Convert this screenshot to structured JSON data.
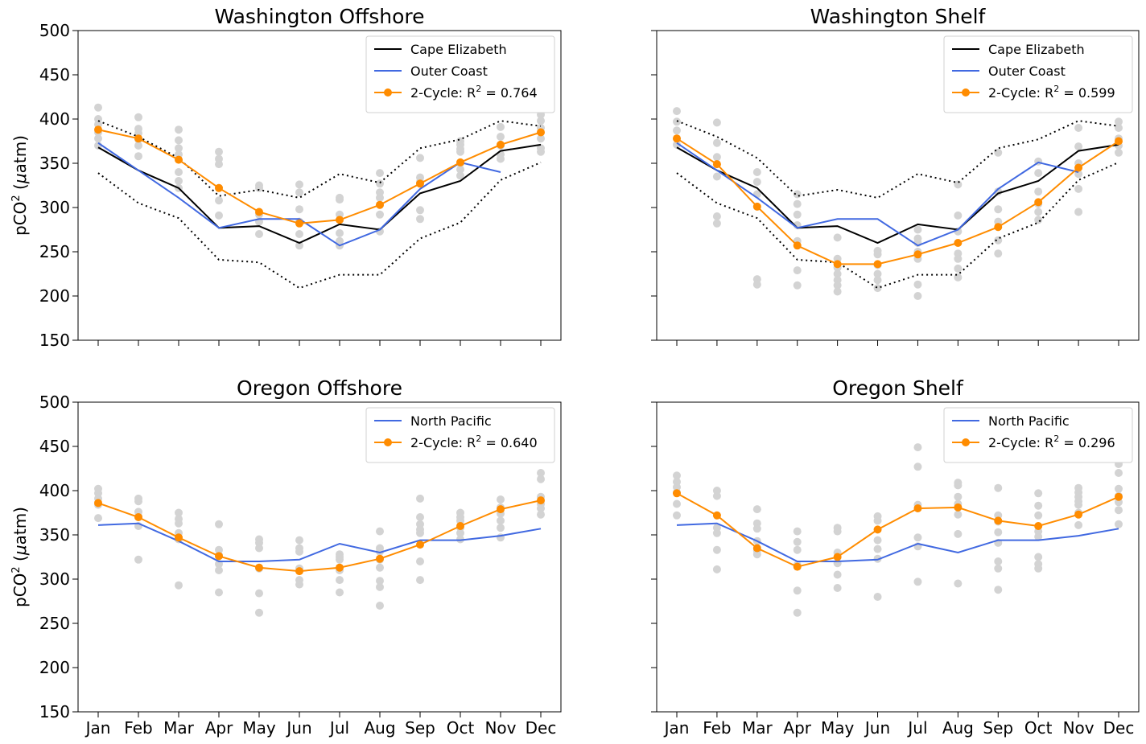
{
  "months": [
    "Jan",
    "Feb",
    "Mar",
    "Apr",
    "May",
    "Jun",
    "Jul",
    "Aug",
    "Sep",
    "Oct",
    "Nov",
    "Dec"
  ],
  "colors": {
    "black": "#000000",
    "blue": "#4169e1",
    "orange": "#ff8c00",
    "scatter": "#d3d3d3"
  },
  "chart_data": [
    {
      "type": "line",
      "title": "Washington Offshore",
      "ylabel": "pCO² (μatm)",
      "ylim": [
        150,
        500
      ],
      "yticks": [
        150,
        200,
        250,
        300,
        350,
        400,
        450,
        500
      ],
      "legend_position": "upper right",
      "series": [
        {
          "name": "Cape Elizabeth",
          "color": "#000000",
          "style": "solid",
          "values": [
            368,
            342,
            322,
            277,
            279,
            260,
            281,
            275,
            316,
            330,
            364,
            371
          ]
        },
        {
          "name": "Outer Coast",
          "color": "#4169e1",
          "style": "solid",
          "values": [
            373,
            342,
            311,
            277,
            287,
            287,
            257,
            275,
            321,
            351,
            340,
            null
          ]
        },
        {
          "name": "2-Cycle: R",
          "r2": "0.764",
          "color": "#ff8c00",
          "style": "marker",
          "values": [
            388,
            378,
            354,
            322,
            295,
            282,
            286,
            303,
            327,
            351,
            371,
            385
          ]
        },
        {
          "color": "#000000",
          "style": "dotted",
          "values": [
            398,
            380,
            356,
            313,
            320,
            311,
            338,
            328,
            367,
            377,
            398,
            392
          ]
        },
        {
          "color": "#000000",
          "style": "dotted",
          "values": [
            339,
            305,
            288,
            241,
            238,
            209,
            224,
            224,
            265,
            283,
            331,
            351
          ]
        }
      ],
      "scatter": [
        [
          413,
          400,
          394,
          385,
          378,
          370
        ],
        [
          402,
          389,
          384,
          377,
          370,
          358
        ],
        [
          388,
          376,
          367,
          360,
          340,
          330,
          322
        ],
        [
          363,
          355,
          349,
          322,
          308,
          291
        ],
        [
          325,
          322,
          292,
          284,
          270
        ],
        [
          326,
          317,
          298,
          284,
          270,
          257
        ],
        [
          311,
          309,
          292,
          271,
          262,
          257
        ],
        [
          339,
          327,
          317,
          311,
          303,
          292,
          273
        ],
        [
          356,
          334,
          329,
          297,
          287
        ],
        [
          375,
          371,
          366,
          363,
          350,
          343,
          336
        ],
        [
          391,
          380,
          370,
          360,
          355
        ],
        [
          405,
          398,
          390,
          378,
          367,
          363
        ]
      ]
    },
    {
      "type": "line",
      "title": "Washington Shelf",
      "ylim": [
        150,
        500
      ],
      "legend_position": "upper right",
      "series": [
        {
          "name": "Cape Elizabeth",
          "color": "#000000",
          "style": "solid",
          "values": [
            368,
            342,
            322,
            277,
            279,
            260,
            281,
            275,
            316,
            330,
            364,
            371
          ]
        },
        {
          "name": "Outer Coast",
          "color": "#4169e1",
          "style": "solid",
          "values": [
            373,
            342,
            311,
            277,
            287,
            287,
            257,
            275,
            321,
            351,
            340,
            null
          ]
        },
        {
          "name": "2-Cycle: R",
          "r2": "0.599",
          "color": "#ff8c00",
          "style": "marker",
          "values": [
            378,
            349,
            301,
            257,
            236,
            236,
            247,
            260,
            278,
            306,
            345,
            375
          ]
        },
        {
          "color": "#000000",
          "style": "dotted",
          "values": [
            398,
            380,
            356,
            313,
            320,
            311,
            338,
            328,
            367,
            377,
            398,
            392
          ]
        },
        {
          "color": "#000000",
          "style": "dotted",
          "values": [
            339,
            305,
            288,
            241,
            238,
            209,
            224,
            224,
            265,
            283,
            331,
            351
          ]
        }
      ],
      "scatter": [
        [
          409,
          397,
          387,
          378,
          371
        ],
        [
          396,
          373,
          357,
          335,
          290,
          282
        ],
        [
          340,
          329,
          315,
          219,
          213
        ],
        [
          315,
          304,
          292,
          280,
          262,
          229,
          212
        ],
        [
          266,
          242,
          232,
          225,
          218,
          212,
          205
        ],
        [
          251,
          247,
          235,
          225,
          218,
          209
        ],
        [
          275,
          265,
          260,
          250,
          242,
          213,
          200
        ],
        [
          326,
          291,
          273,
          248,
          242,
          231,
          221
        ],
        [
          362,
          318,
          298,
          284,
          263,
          248
        ],
        [
          352,
          339,
          318,
          304,
          295,
          286
        ],
        [
          390,
          369,
          350,
          338,
          321,
          295
        ],
        [
          397,
          390,
          378,
          370,
          362
        ]
      ]
    },
    {
      "type": "line",
      "title": "Oregon Offshore",
      "ylabel": "pCO² (μatm)",
      "ylim": [
        150,
        500
      ],
      "legend_position": "upper right",
      "series": [
        {
          "name": "North Pacific",
          "color": "#4169e1",
          "style": "solid",
          "values": [
            361,
            363,
            343,
            320,
            320,
            322,
            340,
            330,
            344,
            344,
            349,
            357
          ]
        },
        {
          "name": "2-Cycle: R",
          "r2": "0.640",
          "color": "#ff8c00",
          "style": "marker",
          "values": [
            386,
            370,
            347,
            326,
            313,
            309,
            313,
            323,
            339,
            360,
            379,
            389
          ]
        }
      ],
      "scatter": [
        [
          402,
          397,
          391,
          384,
          369
        ],
        [
          391,
          388,
          376,
          371,
          360,
          322
        ],
        [
          375,
          368,
          363,
          352,
          345,
          293
        ],
        [
          362,
          333,
          327,
          317,
          310,
          285
        ],
        [
          345,
          341,
          335,
          312,
          284,
          262
        ],
        [
          344,
          335,
          331,
          312,
          299,
          294
        ],
        [
          328,
          325,
          322,
          310,
          299,
          285
        ],
        [
          354,
          335,
          331,
          322,
          313,
          298,
          291,
          270
        ],
        [
          391,
          370,
          362,
          356,
          352,
          320,
          299
        ],
        [
          375,
          370,
          366,
          358,
          352,
          345
        ],
        [
          390,
          381,
          374,
          366,
          358,
          347
        ],
        [
          420,
          413,
          393,
          385,
          380,
          373
        ]
      ]
    },
    {
      "type": "line",
      "title": "Oregon Shelf",
      "ylim": [
        150,
        500
      ],
      "legend_position": "upper right",
      "series": [
        {
          "name": "North Pacific",
          "color": "#4169e1",
          "style": "solid",
          "values": [
            361,
            363,
            343,
            320,
            320,
            322,
            340,
            330,
            344,
            344,
            349,
            357
          ]
        },
        {
          "name": "2-Cycle: R",
          "r2": "0.296",
          "color": "#ff8c00",
          "style": "marker",
          "values": [
            397,
            372,
            335,
            314,
            325,
            356,
            380,
            381,
            366,
            360,
            373,
            393
          ]
        }
      ],
      "scatter": [
        [
          417,
          410,
          404,
          398,
          385,
          372
        ],
        [
          400,
          394,
          358,
          352,
          333,
          311
        ],
        [
          379,
          363,
          357,
          343,
          332,
          328
        ],
        [
          354,
          342,
          333,
          316,
          287,
          262
        ],
        [
          358,
          354,
          330,
          318,
          305,
          290
        ],
        [
          371,
          366,
          344,
          334,
          323,
          280
        ],
        [
          449,
          427,
          384,
          347,
          337,
          297
        ],
        [
          436,
          409,
          406,
          393,
          385,
          373,
          351,
          295
        ],
        [
          403,
          372,
          365,
          353,
          341,
          320,
          312,
          288
        ],
        [
          397,
          383,
          372,
          354,
          348,
          325,
          317,
          312
        ],
        [
          403,
          398,
          393,
          388,
          384,
          375,
          361
        ],
        [
          430,
          420,
          402,
          394,
          387,
          378,
          362
        ]
      ]
    }
  ]
}
